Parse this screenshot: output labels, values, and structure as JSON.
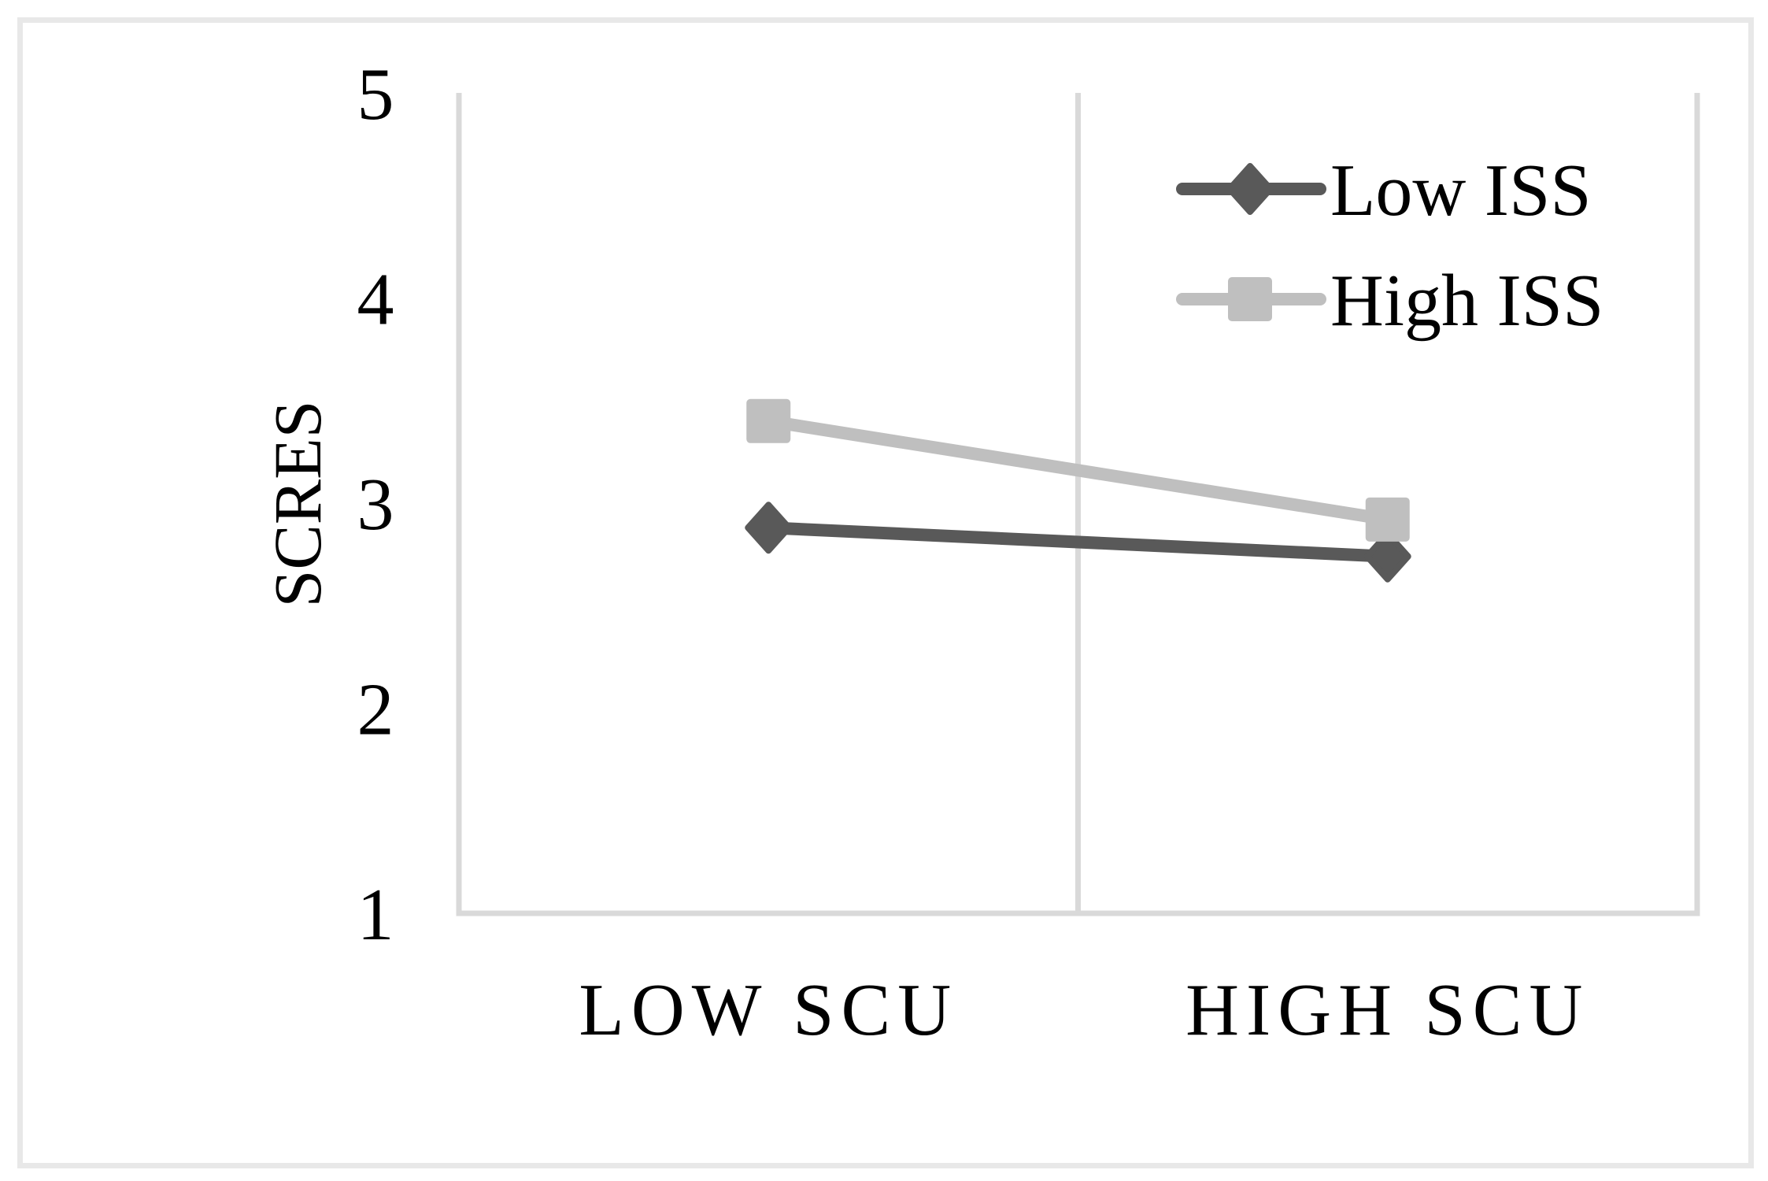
{
  "figure": {
    "background": "#FFFFFF",
    "border_color": "#E8E8E8"
  },
  "chart_data": {
    "type": "line",
    "title": "",
    "xlabel": "",
    "ylabel": "SCRES",
    "categories": [
      "LOW SCU",
      "HIGH SCU"
    ],
    "series": [
      {
        "name": "Low ISS",
        "marker": "diamond",
        "color": "#595959",
        "values": [
          2.88,
          2.74
        ]
      },
      {
        "name": "High ISS",
        "marker": "square",
        "color": "#BFBFBF",
        "values": [
          3.4,
          2.92
        ]
      }
    ],
    "ylim": [
      1,
      5
    ],
    "yticks": [
      5,
      4,
      3,
      2,
      1
    ],
    "grid": "vertical-category-boundaries",
    "axis_color": "#D9D9D9",
    "legend_position": "top-right-inside"
  }
}
